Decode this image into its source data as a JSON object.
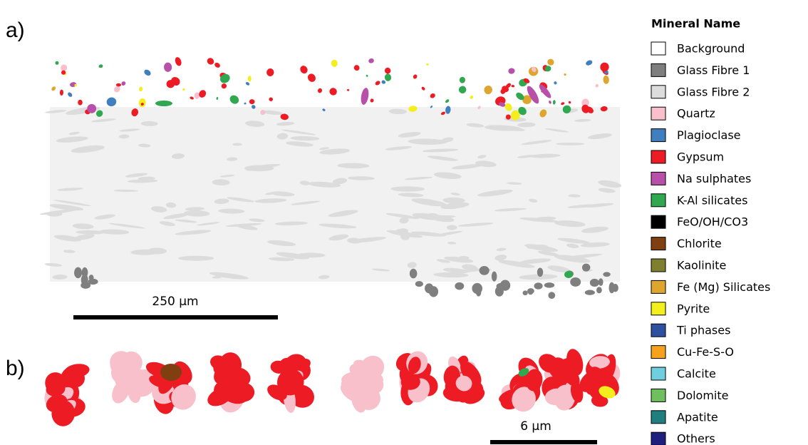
{
  "panels": [
    {
      "label": "a)",
      "scale_bar": "250 µm"
    },
    {
      "label": "b)",
      "scale_bar": "6 µm"
    }
  ],
  "legend": {
    "title": "Mineral Name",
    "items": [
      {
        "name": "Background",
        "color": "#ffffff"
      },
      {
        "name": "Glass Fibre 1",
        "color": "#7f7f7f"
      },
      {
        "name": "Glass Fibre 2",
        "color": "#dcdcdc"
      },
      {
        "name": "Quartz",
        "color": "#f7c0cb"
      },
      {
        "name": "Plagioclase",
        "color": "#3f7fbf"
      },
      {
        "name": "Gypsum",
        "color": "#ed1c24"
      },
      {
        "name": "Na sulphates",
        "color": "#b84fa8"
      },
      {
        "name": "K-Al silicates",
        "color": "#2fa84f"
      },
      {
        "name": "FeO/OH/CO3",
        "color": "#000000"
      },
      {
        "name": "Chlorite",
        "color": "#7f3f10"
      },
      {
        "name": "Kaolinite",
        "color": "#7f7f2f"
      },
      {
        "name": "Fe (Mg) Silicates",
        "color": "#dfa62f"
      },
      {
        "name": "Pyrite",
        "color": "#f2ef1c"
      },
      {
        "name": "Ti phases",
        "color": "#2f4f9f"
      },
      {
        "name": "Cu-Fe-S-O",
        "color": "#f7a21c"
      },
      {
        "name": "Calcite",
        "color": "#6fcfdf"
      },
      {
        "name": "Dolomite",
        "color": "#6fbf5f"
      },
      {
        "name": "Apatite",
        "color": "#1f7f7f"
      },
      {
        "name": "Others",
        "color": "#1f1f7f"
      }
    ]
  }
}
